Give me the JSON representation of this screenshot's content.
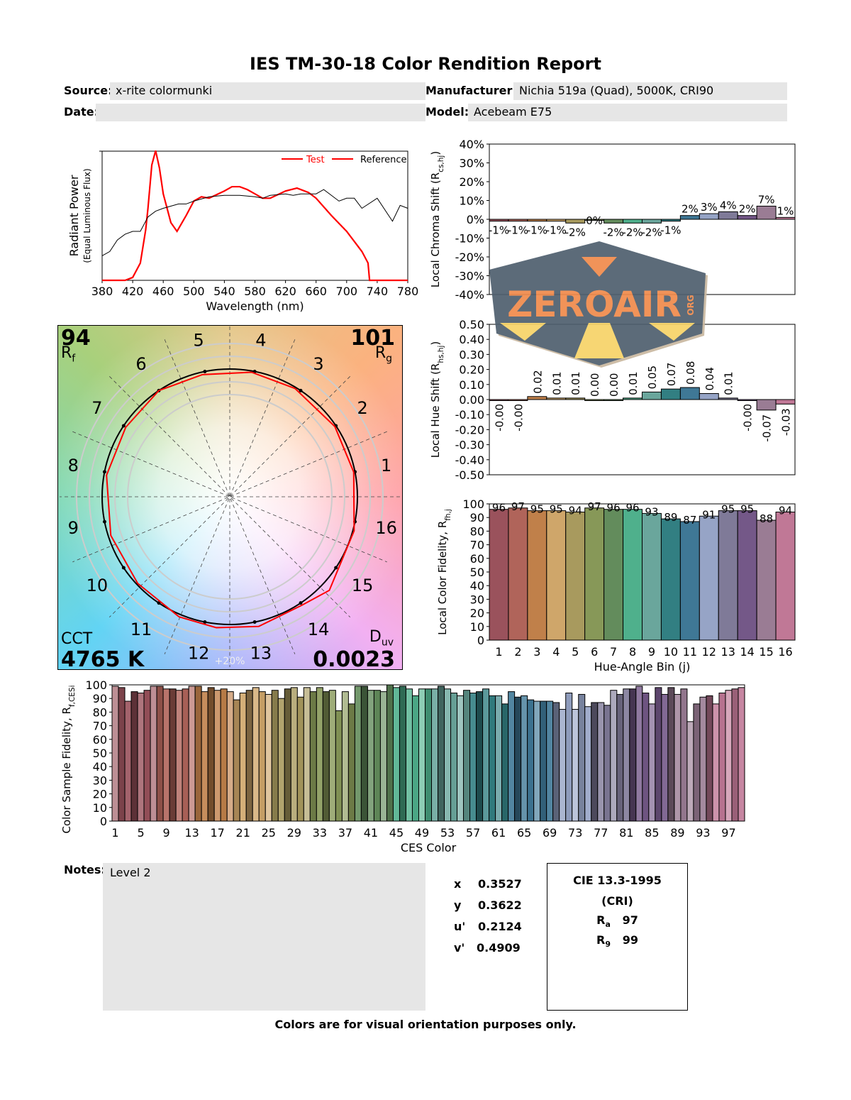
{
  "header": {
    "title": "IES TM-30-18 Color Rendition Report"
  },
  "info": {
    "source_label": "Source:",
    "source": "x-rite colormunki",
    "date_label": "Date:",
    "date": "",
    "manufacturer_label": "Manufacturer:",
    "manufacturer": "Nichia 519a (Quad), 5000K, CRI90",
    "model_label": "Model:",
    "model": "Acebeam E75"
  },
  "bin_colors": [
    "#9a525c",
    "#b0645a",
    "#c0804a",
    "#cfa66a",
    "#a89a5e",
    "#879858",
    "#638c5c",
    "#4fb08c",
    "#6aa69c",
    "#327f82",
    "#3f7896",
    "#96a4c6",
    "#7f7a98",
    "#745888",
    "#9a7c94",
    "#c07896"
  ],
  "chart_data": [
    {
      "type": "line",
      "id": "spd",
      "xlabel": "Wavelength (nm)",
      "ylabel": "Radiant Power",
      "ylabel2": "(Equal Luminous Flux)",
      "xlim": [
        380,
        780
      ],
      "xticks": [
        380,
        420,
        460,
        500,
        540,
        580,
        620,
        660,
        700,
        740,
        780
      ],
      "legend": "top-right",
      "series": [
        {
          "name": "Test",
          "color": "#ff0000",
          "points": [
            [
              380,
              0
            ],
            [
              410,
              0
            ],
            [
              420,
              0.02
            ],
            [
              430,
              0.12
            ],
            [
              437,
              0.35
            ],
            [
              440,
              0.5
            ],
            [
              445,
              0.8
            ],
            [
              450,
              0.9
            ],
            [
              455,
              0.78
            ],
            [
              460,
              0.6
            ],
            [
              470,
              0.4
            ],
            [
              478,
              0.34
            ],
            [
              490,
              0.45
            ],
            [
              500,
              0.55
            ],
            [
              510,
              0.58
            ],
            [
              520,
              0.57
            ],
            [
              540,
              0.62
            ],
            [
              550,
              0.65
            ],
            [
              560,
              0.65
            ],
            [
              570,
              0.63
            ],
            [
              580,
              0.6
            ],
            [
              590,
              0.57
            ],
            [
              600,
              0.57
            ],
            [
              620,
              0.62
            ],
            [
              635,
              0.64
            ],
            [
              650,
              0.61
            ],
            [
              660,
              0.57
            ],
            [
              680,
              0.45
            ],
            [
              700,
              0.34
            ],
            [
              720,
              0.2
            ],
            [
              728,
              0.12
            ],
            [
              730,
              0
            ],
            [
              780,
              0
            ]
          ]
        },
        {
          "name": "Reference",
          "color": "#000000",
          "points": [
            [
              380,
              0.17
            ],
            [
              390,
              0.2
            ],
            [
              400,
              0.28
            ],
            [
              410,
              0.32
            ],
            [
              420,
              0.34
            ],
            [
              430,
              0.34
            ],
            [
              440,
              0.44
            ],
            [
              450,
              0.48
            ],
            [
              460,
              0.5
            ],
            [
              480,
              0.53
            ],
            [
              490,
              0.53
            ],
            [
              500,
              0.55
            ],
            [
              520,
              0.58
            ],
            [
              540,
              0.59
            ],
            [
              560,
              0.59
            ],
            [
              580,
              0.58
            ],
            [
              590,
              0.57
            ],
            [
              600,
              0.59
            ],
            [
              620,
              0.6
            ],
            [
              630,
              0.59
            ],
            [
              640,
              0.6
            ],
            [
              660,
              0.6
            ],
            [
              670,
              0.63
            ],
            [
              690,
              0.55
            ],
            [
              700,
              0.57
            ],
            [
              710,
              0.57
            ],
            [
              720,
              0.5
            ],
            [
              740,
              0.57
            ],
            [
              760,
              0.41
            ],
            [
              770,
              0.52
            ],
            [
              780,
              0.5
            ]
          ]
        }
      ]
    },
    {
      "type": "bar",
      "id": "chroma",
      "ylabel": "Local Chroma Shift (R",
      "ylabel_sub": "cs,hj",
      "ylabel_end": ")",
      "ylim": [
        -40,
        40
      ],
      "yticks": [
        -40,
        -30,
        -20,
        -10,
        0,
        10,
        20,
        30,
        40
      ],
      "unit": "%",
      "categories": [
        1,
        2,
        3,
        4,
        5,
        6,
        7,
        8,
        9,
        10,
        11,
        12,
        13,
        14,
        15,
        16
      ],
      "values": [
        -1,
        -1,
        -1,
        -1,
        -2,
        0,
        -2,
        -2,
        -2,
        -1,
        2,
        3,
        4,
        2,
        7,
        1
      ]
    },
    {
      "type": "bar",
      "id": "hue",
      "ylabel": "Local Hue Shift (R",
      "ylabel_sub": "hs,hj",
      "ylabel_end": ")",
      "ylim": [
        -0.5,
        0.5
      ],
      "yticks": [
        -0.5,
        -0.4,
        -0.3,
        -0.2,
        -0.1,
        0,
        0.1,
        0.2,
        0.3,
        0.4,
        0.5
      ],
      "categories": [
        1,
        2,
        3,
        4,
        5,
        6,
        7,
        8,
        9,
        10,
        11,
        12,
        13,
        14,
        15,
        16
      ],
      "values": [
        -0.0,
        -0.0,
        0.02,
        0.01,
        0.01,
        0.0,
        0.0,
        0.01,
        0.05,
        0.07,
        0.08,
        0.04,
        0.01,
        -0.0,
        -0.07,
        -0.03
      ],
      "labels": [
        "-0.00",
        "-0.00",
        "0.02",
        "0.01",
        "0.01",
        "0.00",
        "0.00",
        "0.01",
        "0.05",
        "0.07",
        "0.08",
        "0.04",
        "0.01",
        "-0.00",
        "-0.07",
        "-0.03"
      ]
    },
    {
      "type": "bar",
      "id": "fid",
      "ylabel": "Local Color Fidelity, R",
      "ylabel_sub": "fh,j",
      "xlabel": "Hue-Angle Bin (j)",
      "ylim": [
        0,
        100
      ],
      "yticks": [
        0,
        10,
        20,
        30,
        40,
        50,
        60,
        70,
        80,
        90,
        100
      ],
      "categories": [
        1,
        2,
        3,
        4,
        5,
        6,
        7,
        8,
        9,
        10,
        11,
        12,
        13,
        14,
        15,
        16
      ],
      "values": [
        96,
        97,
        95,
        95,
        94,
        97,
        96,
        96,
        93,
        89,
        87,
        91,
        95,
        95,
        88,
        94
      ]
    },
    {
      "type": "bar",
      "id": "ces",
      "ylabel": "Color Sample Fidelity, R",
      "ylabel_sub": "f,CESi",
      "xlabel": "CES Color",
      "ylim": [
        0,
        100
      ],
      "yticks": [
        0,
        10,
        20,
        30,
        40,
        50,
        60,
        70,
        80,
        90,
        100
      ],
      "xticks": [
        1,
        5,
        9,
        13,
        17,
        21,
        25,
        29,
        33,
        37,
        41,
        45,
        49,
        53,
        57,
        61,
        65,
        69,
        73,
        77,
        81,
        85,
        89,
        93,
        97
      ],
      "values": [
        99,
        98,
        88,
        95,
        94,
        96,
        99,
        99,
        97,
        97,
        96,
        97,
        99,
        99,
        95,
        98,
        96,
        97,
        95,
        89,
        94,
        96,
        98,
        95,
        93,
        96,
        90,
        97,
        98,
        91,
        98,
        95,
        98,
        95,
        96,
        81,
        95,
        86,
        99,
        99,
        96,
        96,
        95,
        100,
        98,
        99,
        97,
        92,
        97,
        97,
        97,
        99,
        97,
        94,
        92,
        96,
        94,
        95,
        97,
        92,
        92,
        86,
        95,
        91,
        92,
        89,
        88,
        88,
        88,
        87,
        82,
        94,
        82,
        93,
        84,
        87,
        87,
        85,
        96,
        93,
        97,
        97,
        99,
        94,
        86,
        98,
        93,
        98,
        93,
        97,
        73,
        86,
        91,
        92,
        86,
        94,
        96,
        97,
        98
      ]
    },
    {
      "type": "vector",
      "id": "cvg",
      "bins": [
        1,
        2,
        3,
        4,
        5,
        6,
        7,
        8,
        9,
        10,
        11,
        12,
        13,
        14,
        15,
        16
      ],
      "test_color": "#ff0000",
      "reference_color": "#000000",
      "ring_label": "+20%"
    }
  ],
  "metrics": {
    "rf": "94",
    "rf_label": "R",
    "rf_sub": "f",
    "rg": "101",
    "rg_label": "R",
    "rg_sub": "g",
    "cct_label": "CCT",
    "cct": "4765 K",
    "duv_label": "D",
    "duv_sub": "uv",
    "duv": "0.0023"
  },
  "notes": {
    "label": "Notes:",
    "text": "Level 2"
  },
  "chromaticity": [
    {
      "k": "x",
      "v": "0.3527"
    },
    {
      "k": "y",
      "v": "0.3622"
    },
    {
      "k": "u'",
      "v": "0.2124"
    },
    {
      "k": "v'",
      "v": "0.4909"
    }
  ],
  "cri": {
    "title": "CIE 13.3-1995",
    "subtitle": "(CRI)",
    "ra_label": "R",
    "ra_sub": "a",
    "ra": "97",
    "r9_label": "R",
    "r9_sub": "9",
    "r9": "99"
  },
  "footer": "Colors are for visual orientation purposes only.",
  "watermark": {
    "text": "ZEROAIR",
    "suffix": "ORG"
  }
}
